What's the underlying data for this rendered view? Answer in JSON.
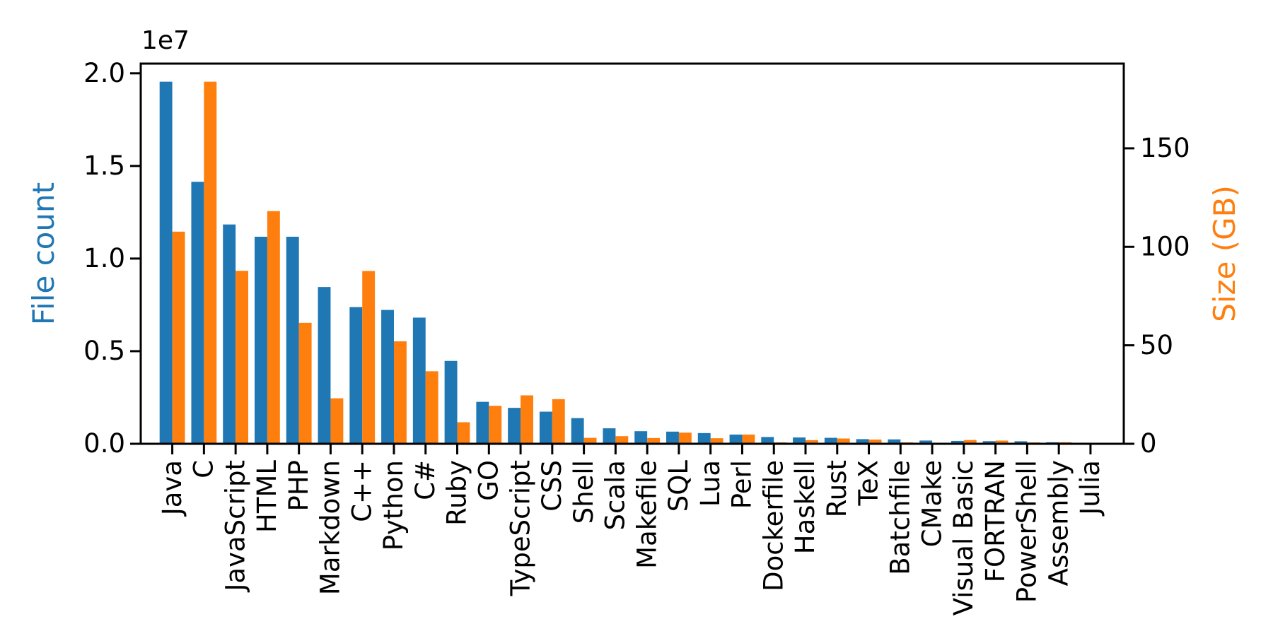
{
  "figure": {
    "background": "#ffffff"
  },
  "chart_data": {
    "type": "bar",
    "title": "",
    "xlabel": "",
    "ylabel_left": "File count",
    "ylabel_right": "Size (GB)",
    "grid": false,
    "legend": "none",
    "categories": [
      "Java",
      "C",
      "JavaScript",
      "HTML",
      "PHP",
      "Markdown",
      "C++",
      "Python",
      "C#",
      "Ruby",
      "GO",
      "TypeScript",
      "CSS",
      "Shell",
      "Scala",
      "Makefile",
      "SQL",
      "Lua",
      "Perl",
      "Dockerfile",
      "Haskell",
      "Rust",
      "TeX",
      "Batchfile",
      "CMake",
      "Visual Basic",
      "FORTRAN",
      "PowerShell",
      "Assembly",
      "Julia"
    ],
    "series": [
      {
        "name": "File count",
        "axis": "left",
        "color": "#1f77b4",
        "values": [
          19548190,
          14143113,
          11839883,
          11178557,
          11177610,
          8464626,
          7380520,
          7226626,
          6811652,
          4473331,
          2265436,
          1940406,
          1734406,
          1385648,
          835755,
          679430,
          656671,
          578554,
          497949,
          366505,
          340623,
          322431,
          251015,
          236945,
          175282,
          155652,
          142038,
          136846,
          82905,
          58317
        ]
      },
      {
        "name": "Size (GB)",
        "axis": "right",
        "color": "#ff7f0e",
        "values": [
          107.7,
          183.83,
          87.82,
          118.12,
          61.41,
          23.09,
          87.73,
          52.03,
          36.83,
          10.95,
          19.28,
          24.59,
          22.67,
          3.01,
          3.87,
          2.92,
          5.67,
          2.81,
          4.7,
          0.71,
          1.85,
          2.68,
          2.15,
          0.7,
          0.54,
          1.91,
          1.62,
          0.69,
          0.78,
          0.29
        ]
      }
    ],
    "ylim_left": [
      0,
      20525600
    ],
    "ylim_right": [
      0,
      193.02
    ],
    "yticks_left": {
      "values": [
        0,
        5000000,
        10000000,
        15000000,
        20000000
      ],
      "labels": [
        "0.0",
        "0.5",
        "1.0",
        "1.5",
        "2.0"
      ],
      "offset_label": "1e7"
    },
    "yticks_right": {
      "values": [
        0,
        50,
        100,
        150
      ],
      "labels": [
        "0",
        "50",
        "100",
        "150"
      ]
    },
    "colors": {
      "file_count": "#1f77b4",
      "size": "#ff7f0e",
      "text": "#000000",
      "spine": "#000000"
    }
  }
}
